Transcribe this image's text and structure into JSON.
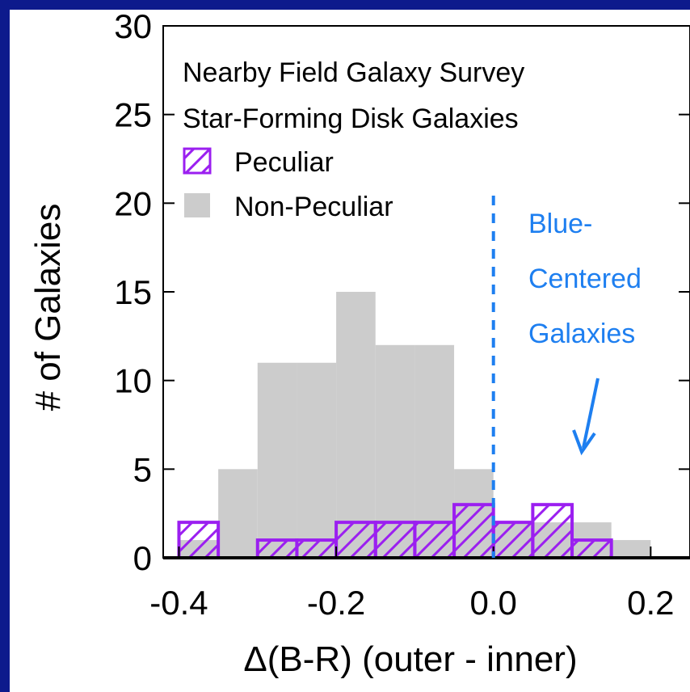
{
  "colors": {
    "background_border": "#0d1a8c",
    "plot_background": "#ffffff",
    "non_peculiar_fill": "#cccccc",
    "peculiar_stroke": "#9b1ff0",
    "peculiar_hatch": "#9b1ff0",
    "annotation": "#1e7ff0",
    "axis": "#000000"
  },
  "chart_data": {
    "type": "bar",
    "histogram": true,
    "title_lines": [
      "Nearby Field Galaxy Survey",
      "Star-Forming Disk Galaxies"
    ],
    "xlabel": "Δ(B-R)  (outer - inner)",
    "ylabel": "# of Galaxies",
    "xlim": [
      -0.42,
      0.25
    ],
    "ylim": [
      0,
      30
    ],
    "x_ticks": [
      -0.4,
      -0.2,
      0.0,
      0.2
    ],
    "x_tick_labels": [
      "-0.4",
      "-0.2",
      "0.0",
      "0.2"
    ],
    "y_ticks": [
      0,
      5,
      10,
      15,
      20,
      25,
      30
    ],
    "y_tick_labels": [
      "0",
      "5",
      "10",
      "15",
      "20",
      "25",
      "30"
    ],
    "bin_edges": [
      -0.4,
      -0.35,
      -0.3,
      -0.25,
      -0.2,
      -0.15,
      -0.1,
      -0.05,
      0.0,
      0.05,
      0.1,
      0.15,
      0.2
    ],
    "series": [
      {
        "name": "Non-Peculiar",
        "style": "filled",
        "values": [
          1,
          5,
          11,
          11,
          15,
          12,
          12,
          5,
          2,
          2,
          2,
          1
        ]
      },
      {
        "name": "Peculiar",
        "style": "hatched",
        "values": [
          2,
          0,
          1,
          1,
          2,
          2,
          2,
          3,
          2,
          3,
          1,
          0
        ]
      }
    ],
    "legend": {
      "placement": "top-left",
      "entries": [
        {
          "label": "Peculiar",
          "style": "hatched"
        },
        {
          "label": "Non-Peculiar",
          "style": "filled"
        }
      ]
    },
    "annotations": {
      "divider_x": 0.0,
      "divider_style": "dashed",
      "label_lines": [
        "Blue-",
        "Centered",
        "Galaxies"
      ],
      "arrow": true
    },
    "grid": false
  }
}
